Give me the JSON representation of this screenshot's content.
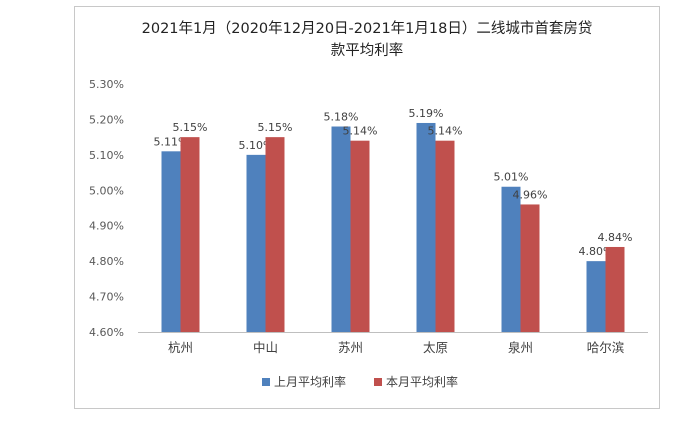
{
  "chart_data": {
    "type": "bar",
    "title_line1": "2021年1月（2020年12月20日-2021年1月18日）二线城市首套房贷",
    "title_line2": "款平均利率",
    "categories": [
      "杭州",
      "中山",
      "苏州",
      "太原",
      "泉州",
      "哈尔滨"
    ],
    "series": [
      {
        "name": "上月平均利率",
        "color": "#4f81bd",
        "values": [
          5.11,
          5.1,
          5.18,
          5.19,
          5.01,
          4.8
        ]
      },
      {
        "name": "本月平均利率",
        "color": "#c0504d",
        "values": [
          5.15,
          5.15,
          5.14,
          5.14,
          4.96,
          4.84
        ]
      }
    ],
    "ylim": [
      4.6,
      5.3
    ],
    "yticks": [
      "4.60%",
      "4.70%",
      "4.80%",
      "4.90%",
      "5.00%",
      "5.10%",
      "5.20%",
      "5.30%"
    ],
    "value_unit": "%",
    "grid": false,
    "legend_position": "bottom"
  }
}
